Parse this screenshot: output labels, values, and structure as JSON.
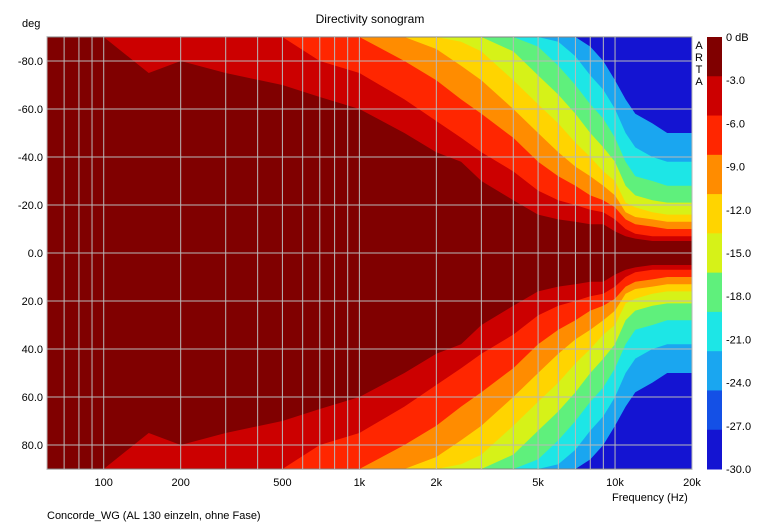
{
  "chart_data": {
    "type": "heatmap",
    "title": "Directivity sonogram",
    "ylabel": "deg",
    "xlabel": "Frequency (Hz)",
    "caption": "Concorde_WG (AL 130 einzeln, ohne Fase)",
    "brand_letters": [
      "A",
      "R",
      "T",
      "A"
    ],
    "x_scale": "log",
    "xlim": [
      60,
      20000
    ],
    "ylim": [
      -90,
      90
    ],
    "y_inverted": true,
    "grid": true,
    "x_ticks": [
      {
        "value": 100,
        "label": "100"
      },
      {
        "value": 200,
        "label": "200"
      },
      {
        "value": 500,
        "label": "500"
      },
      {
        "value": 1000,
        "label": "1k"
      },
      {
        "value": 2000,
        "label": "2k"
      },
      {
        "value": 5000,
        "label": "5k"
      },
      {
        "value": 10000,
        "label": "10k"
      },
      {
        "value": 20000,
        "label": "20k"
      }
    ],
    "y_ticks": [
      {
        "value": -80,
        "label": "-80.0"
      },
      {
        "value": -60,
        "label": "-60.0"
      },
      {
        "value": -40,
        "label": "-40.0"
      },
      {
        "value": -20,
        "label": "-20.0"
      },
      {
        "value": 0,
        "label": "0.0"
      },
      {
        "value": 20,
        "label": "20.0"
      },
      {
        "value": 40,
        "label": "40.0"
      },
      {
        "value": 60,
        "label": "60.0"
      },
      {
        "value": 80,
        "label": "80.0"
      }
    ],
    "colorbar": {
      "labels": [
        "0 dB",
        "-3.0",
        "-6.0",
        "-9.0",
        "-12.0",
        "-15.0",
        "-18.0",
        "-21.0",
        "-24.0",
        "-27.0",
        "-30.0"
      ],
      "bands": [
        {
          "from": 0,
          "to": -3,
          "color": "#800000"
        },
        {
          "from": -3,
          "to": -6,
          "color": "#cc0000"
        },
        {
          "from": -6,
          "to": -9,
          "color": "#ff2600"
        },
        {
          "from": -9,
          "to": -12,
          "color": "#ff8c00"
        },
        {
          "from": -12,
          "to": -15,
          "color": "#ffd400"
        },
        {
          "from": -15,
          "to": -18,
          "color": "#d6f218"
        },
        {
          "from": -18,
          "to": -21,
          "color": "#5ff07c"
        },
        {
          "from": -21,
          "to": -24,
          "color": "#1de6e6"
        },
        {
          "from": -24,
          "to": -27,
          "color": "#1aa6f0"
        },
        {
          "from": -27,
          "to": -30,
          "color": "#1450e6"
        },
        {
          "from": -30,
          "to": -33,
          "color": "#1414d2"
        }
      ]
    },
    "beamwidth_contours": {
      "frequencies": [
        60,
        100,
        150,
        200,
        300,
        500,
        700,
        1000,
        1500,
        2000,
        2500,
        3000,
        4000,
        5000,
        6000,
        7000,
        8000,
        9000,
        10000,
        11000,
        12000,
        14000,
        16000,
        18000,
        20000
      ],
      "angles_at_level": [
        {
          "level": -3,
          "angles": [
            90,
            90,
            75,
            80,
            75,
            70,
            65,
            60,
            50,
            42,
            38,
            30,
            22,
            16,
            14,
            13,
            12,
            12,
            9,
            7,
            6,
            5,
            5,
            5,
            5
          ]
        },
        {
          "level": -6,
          "angles": [
            90,
            90,
            90,
            90,
            90,
            90,
            80,
            75,
            64,
            55,
            48,
            42,
            34,
            26,
            22,
            20,
            18,
            17,
            14,
            10,
            8,
            7,
            7,
            7,
            7
          ]
        },
        {
          "level": -9,
          "angles": [
            90,
            90,
            90,
            90,
            90,
            90,
            90,
            90,
            80,
            72,
            64,
            58,
            48,
            38,
            32,
            28,
            24,
            22,
            19,
            14,
            12,
            11,
            10,
            10,
            10
          ]
        },
        {
          "level": -12,
          "angles": [
            90,
            90,
            90,
            90,
            90,
            90,
            90,
            90,
            90,
            85,
            78,
            72,
            60,
            50,
            42,
            36,
            32,
            28,
            24,
            17,
            15,
            14,
            13,
            13,
            13
          ]
        },
        {
          "level": -15,
          "angles": [
            90,
            90,
            90,
            90,
            90,
            90,
            90,
            90,
            90,
            90,
            88,
            84,
            72,
            62,
            54,
            46,
            40,
            34,
            30,
            21,
            19,
            17,
            16,
            16,
            16
          ]
        },
        {
          "level": -18,
          "angles": [
            90,
            90,
            90,
            90,
            90,
            90,
            90,
            90,
            90,
            90,
            90,
            90,
            84,
            74,
            66,
            58,
            50,
            44,
            38,
            28,
            24,
            22,
            21,
            21,
            21
          ]
        },
        {
          "level": -21,
          "angles": [
            90,
            90,
            90,
            90,
            90,
            90,
            90,
            90,
            90,
            90,
            90,
            90,
            90,
            86,
            78,
            70,
            62,
            56,
            48,
            38,
            32,
            30,
            28,
            28,
            28
          ]
        },
        {
          "level": -24,
          "angles": [
            90,
            90,
            90,
            90,
            90,
            90,
            90,
            90,
            90,
            90,
            90,
            90,
            90,
            90,
            88,
            82,
            74,
            68,
            60,
            50,
            44,
            40,
            38,
            38,
            38
          ]
        },
        {
          "level": -27,
          "angles": [
            90,
            90,
            90,
            90,
            90,
            90,
            90,
            90,
            90,
            90,
            90,
            90,
            90,
            90,
            90,
            90,
            86,
            80,
            72,
            64,
            58,
            54,
            50,
            50,
            50
          ]
        }
      ]
    }
  }
}
